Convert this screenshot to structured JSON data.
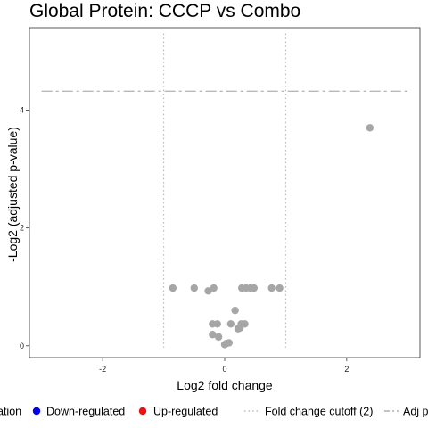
{
  "chart_data": {
    "type": "scatter",
    "title": "Global Protein: CCCP vs Combo",
    "xlabel": "Log2 fold change",
    "ylabel": "-Log2 (adjusted p-value)",
    "xlim": [
      -3.2,
      3.2
    ],
    "ylim": [
      -0.2,
      5.4
    ],
    "x_ticks": [
      -2,
      0,
      2
    ],
    "y_ticks": [
      0,
      2,
      4
    ],
    "grid": false,
    "fold_change_cutoff": [
      -1,
      1
    ],
    "adj_p_cutoff": 4.32,
    "points": [
      {
        "x": -0.85,
        "y": 0.98
      },
      {
        "x": -0.5,
        "y": 0.98
      },
      {
        "x": -0.27,
        "y": 0.93
      },
      {
        "x": -0.18,
        "y": 0.98
      },
      {
        "x": -0.2,
        "y": 0.37
      },
      {
        "x": -0.12,
        "y": 0.37
      },
      {
        "x": -0.2,
        "y": 0.19
      },
      {
        "x": -0.1,
        "y": 0.15
      },
      {
        "x": 0.0,
        "y": 0.02
      },
      {
        "x": 0.03,
        "y": 0.04
      },
      {
        "x": 0.07,
        "y": 0.05
      },
      {
        "x": 0.1,
        "y": 0.37
      },
      {
        "x": 0.17,
        "y": 0.6
      },
      {
        "x": 0.22,
        "y": 0.29
      },
      {
        "x": 0.25,
        "y": 0.3
      },
      {
        "x": 0.27,
        "y": 0.37
      },
      {
        "x": 0.33,
        "y": 0.37
      },
      {
        "x": 0.28,
        "y": 0.98
      },
      {
        "x": 0.35,
        "y": 0.98
      },
      {
        "x": 0.42,
        "y": 0.98
      },
      {
        "x": 0.48,
        "y": 0.98
      },
      {
        "x": 0.77,
        "y": 0.98
      },
      {
        "x": 0.9,
        "y": 0.98
      },
      {
        "x": 2.38,
        "y": 3.7
      }
    ],
    "legend": {
      "placement": "bottom",
      "items": [
        {
          "label": "ation",
          "kind": "point",
          "color": "#000000"
        },
        {
          "label": "Down-regulated",
          "kind": "point",
          "color": "#0000ee"
        },
        {
          "label": "Up-regulated",
          "kind": "point",
          "color": "#ee1111"
        },
        {
          "label": "Fold change cutoff (2)",
          "kind": "dotted-line",
          "color": "#b0b0b0"
        },
        {
          "label": "Adj p",
          "kind": "dashdot-line",
          "color": "#b0b0b0"
        }
      ]
    },
    "colors": {
      "point": "#a6a6a6",
      "cutoff_line": "#b8b8b8",
      "axis": "#333333"
    }
  }
}
